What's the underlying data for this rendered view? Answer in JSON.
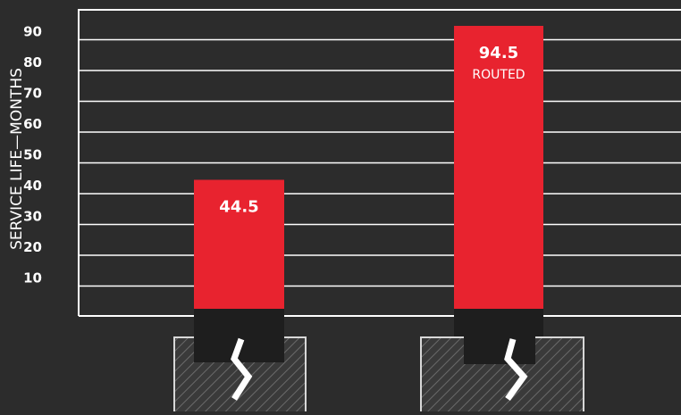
{
  "chart_data": {
    "type": "bar",
    "ylabel": "SERVICE LIFE—MONTHS",
    "yticks": [
      10,
      20,
      30,
      40,
      50,
      60,
      70,
      80,
      90
    ],
    "ylim": [
      0,
      100
    ],
    "grid": true,
    "categories": [
      "",
      ""
    ],
    "values": [
      44.5,
      94.5
    ],
    "value_labels": [
      "44.5",
      "94.5"
    ],
    "bar_sublabels": [
      "",
      "ROUTED"
    ],
    "colors": {
      "background": "#2c2c2c",
      "bar": "#e8232f",
      "gridline": "#ffffff",
      "text": "#ffffff",
      "base": "#1e1e1e",
      "hatch_box": "#3a3a3a"
    }
  }
}
